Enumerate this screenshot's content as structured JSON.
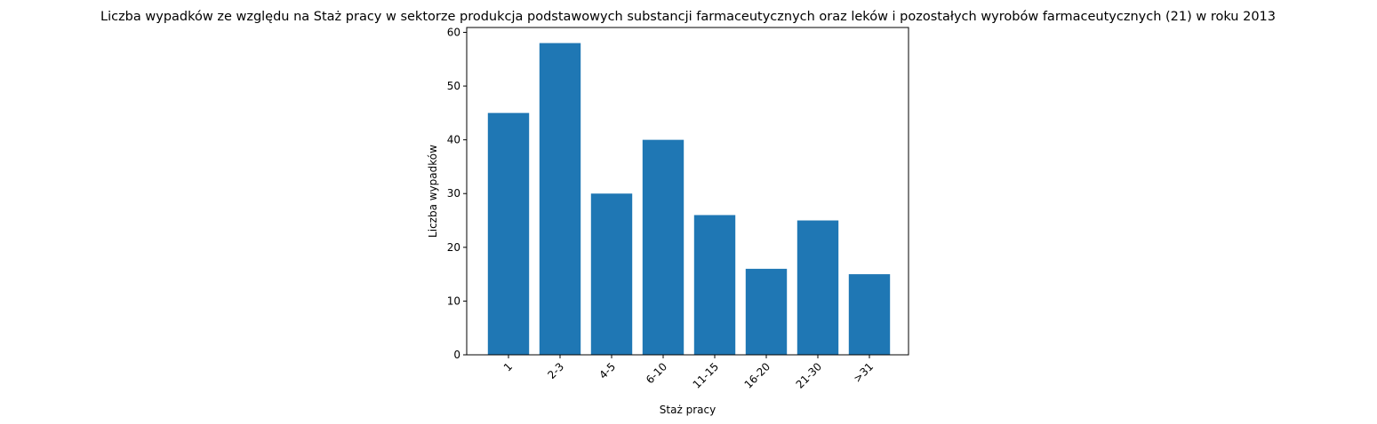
{
  "chart_data": {
    "type": "bar",
    "title": "Liczba wypadków ze względu na Staż pracy w sektorze produkcja podstawowych substancji farmaceutycznych oraz leków i pozostałych wyrobów farmaceutycznych (21)  w roku 2013",
    "xlabel": "Staż pracy",
    "ylabel": "Liczba wypadków",
    "categories": [
      "1",
      "2-3",
      "4-5",
      "6-10",
      "11-15",
      "16-20",
      "21-30",
      ">31"
    ],
    "values": [
      45,
      58,
      30,
      40,
      26,
      16,
      25,
      15
    ],
    "ylim": [
      0,
      60.9
    ],
    "yticks": [
      0,
      10,
      20,
      30,
      40,
      50,
      60
    ],
    "bar_color": "#1f77b4",
    "grid": false,
    "xtick_rotation": 45
  }
}
